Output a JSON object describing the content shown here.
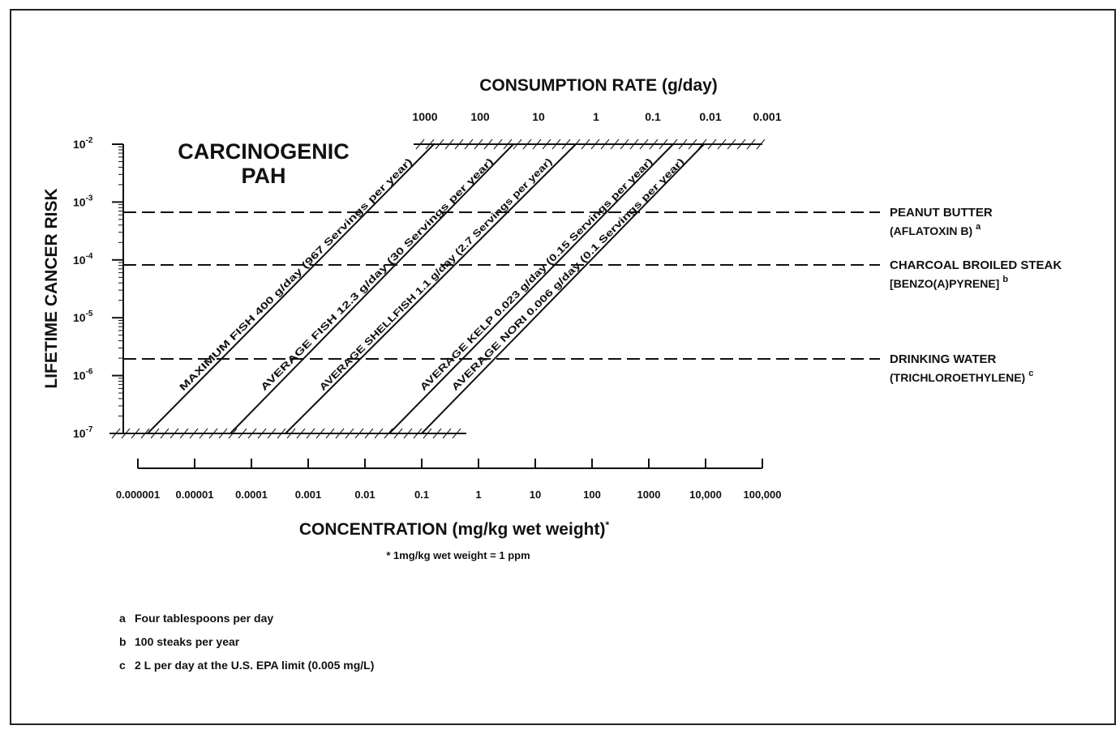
{
  "title": [
    "CARCINOGENIC",
    "PAH"
  ],
  "top_axis": {
    "title": "CONSUMPTION RATE (g/day)",
    "ticks": [
      "1000",
      "100",
      "10",
      "1",
      "0.1",
      "0.01",
      "0.001"
    ]
  },
  "left_axis": {
    "title": "LIFETIME CANCER RISK",
    "ticks": [
      {
        "base": "10",
        "exponent": "-2"
      },
      {
        "base": "10",
        "exponent": "-3"
      },
      {
        "base": "10",
        "exponent": "-4"
      },
      {
        "base": "10",
        "exponent": "-5"
      },
      {
        "base": "10",
        "exponent": "-6"
      },
      {
        "base": "10",
        "exponent": "-7"
      }
    ]
  },
  "bottom_axis": {
    "title": "CONCENTRATION (mg/kg wet weight)",
    "title_mark": "*",
    "ticks": [
      "0.000001",
      "0.00001",
      "0.0001",
      "0.001",
      "0.01",
      "0.1",
      "1",
      "10",
      "100",
      "1000",
      "10,000",
      "100,000"
    ],
    "note": "* 1mg/kg wet weight = 1 ppm"
  },
  "lines": [
    "MAXIMUM FISH 400 g/day (967 Servings per year)",
    "AVERAGE FISH 12.3 g/day (30 Servings per year)",
    "AVERAGE SHELLFISH 1.1 g/day (2.7 Servings per year)",
    "AVERAGE KELP 0.023 g/day (0.15 Servings per year)",
    "AVERAGE NORI 0.006 g/day (0.1 Servings per year)"
  ],
  "references": [
    {
      "name": "PEANUT BUTTER",
      "detail": "(AFLATOXIN B)",
      "note": "a"
    },
    {
      "name": "CHARCOAL BROILED STEAK",
      "detail": "[BENZO(A)PYRENE]",
      "note": "b"
    },
    {
      "name": "DRINKING WATER",
      "detail": "(TRICHLOROETHYLENE)",
      "note": "c"
    }
  ],
  "footnotes": [
    {
      "key": "a",
      "text": "Four tablespoons per day"
    },
    {
      "key": "b",
      "text": "100 steaks per year"
    },
    {
      "key": "c",
      "text": "2 L per day at the U.S. EPA limit (0.005 mg/L)"
    }
  ]
}
